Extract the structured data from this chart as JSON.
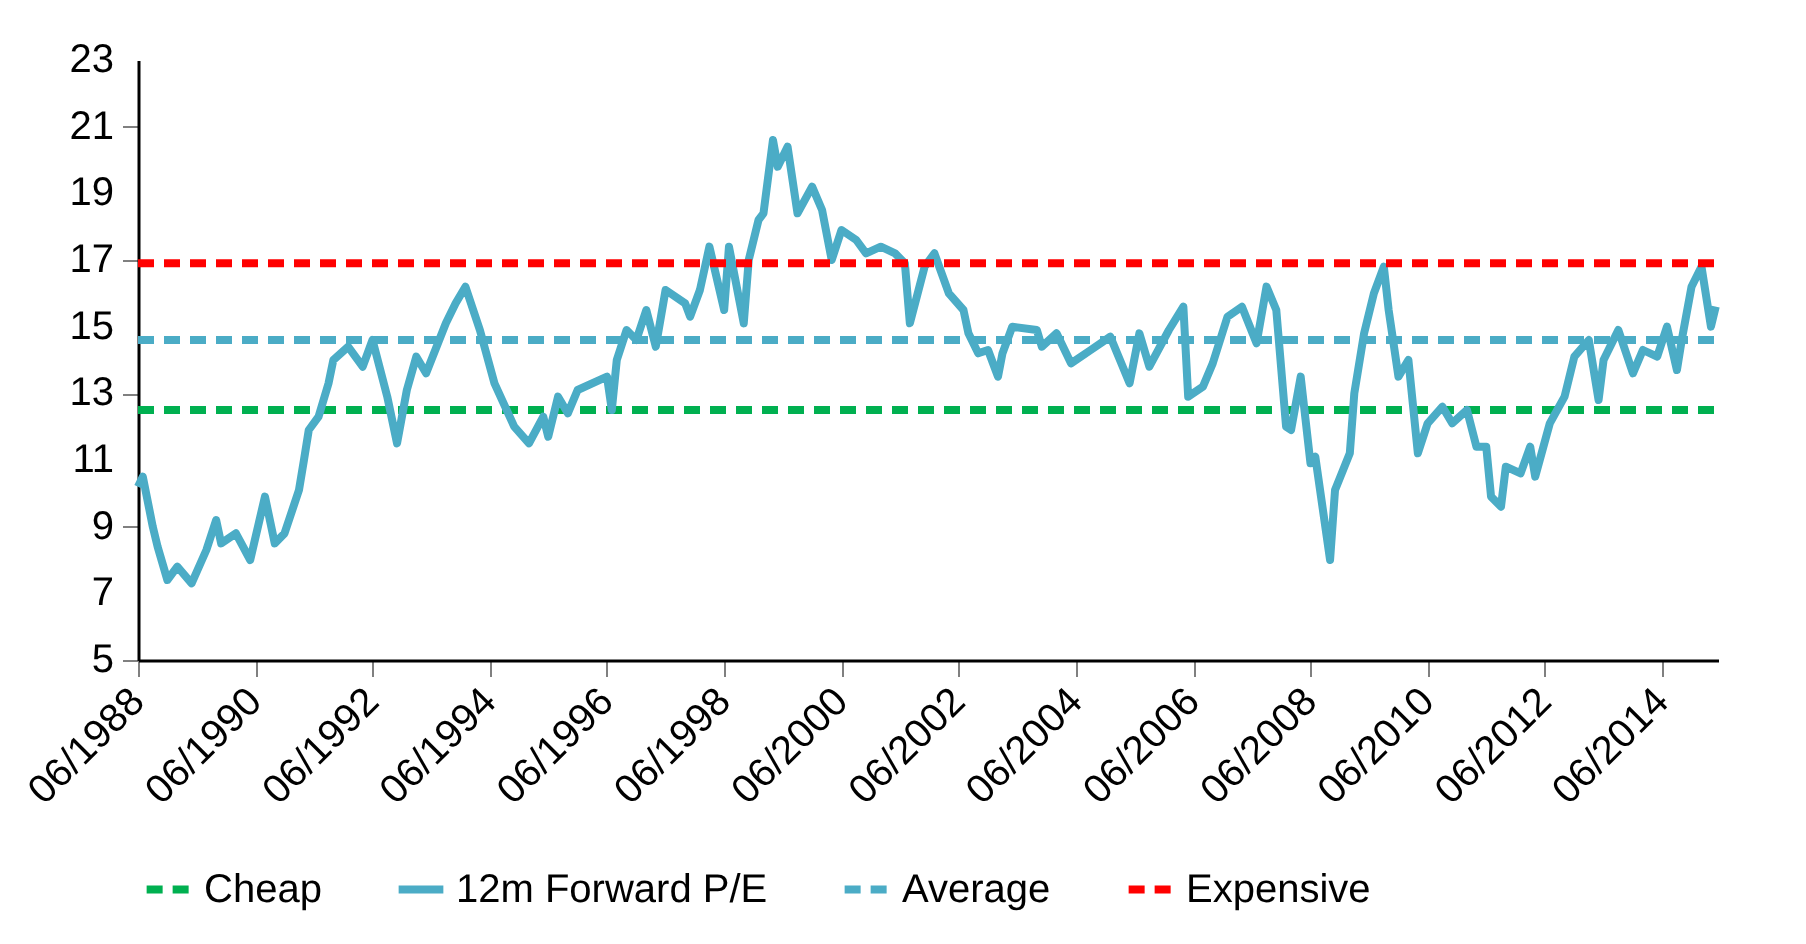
{
  "chart_data": {
    "type": "line",
    "xlim": [
      "1988-06",
      "2015-05-15"
    ],
    "xticks": [
      {
        "value": "1988-06",
        "label": "06/1988"
      },
      {
        "value": "1990-06",
        "label": "06/1990"
      },
      {
        "value": "1992-06",
        "label": "06/1992"
      },
      {
        "value": "1994-06",
        "label": "06/1994"
      },
      {
        "value": "1996-06",
        "label": "06/1996"
      },
      {
        "value": "1998-06",
        "label": "06/1998"
      },
      {
        "value": "2000-06",
        "label": "06/2000"
      },
      {
        "value": "2002-06",
        "label": "06/2002"
      },
      {
        "value": "2004-06",
        "label": "06/2004"
      },
      {
        "value": "2006-06",
        "label": "06/2006"
      },
      {
        "value": "2008-06",
        "label": "06/2008"
      },
      {
        "value": "2010-06",
        "label": "06/2010"
      },
      {
        "value": "2012-06",
        "label": "06/2012"
      },
      {
        "value": "2014-06",
        "label": "06/2014"
      }
    ],
    "ylim": [
      5,
      23
    ],
    "yticks": [
      5,
      7,
      9,
      11,
      13,
      15,
      17,
      19,
      21,
      23
    ],
    "grid": false,
    "legend": "bottom",
    "series": [
      {
        "name": "Cheap",
        "color": "#00b050",
        "line_style": "dashed",
        "x": [
          "1988-06",
          "2015-05-15"
        ],
        "values": [
          12.5,
          12.5
        ]
      },
      {
        "name": "12m Forward P/E",
        "color": "#4bacc6",
        "line_style": "solid",
        "x": [
          "1988-06",
          "1988-07",
          "1988-09",
          "1988-10",
          "1988-12",
          "1989-02",
          "1989-05",
          "1989-08",
          "1989-10",
          "1989-11",
          "1990-02",
          "1990-05",
          "1990-08",
          "1990-10",
          "1990-12",
          "1991-03",
          "1991-04",
          "1991-05",
          "1991-07",
          "1991-09",
          "1991-10",
          "1992-01",
          "1992-04",
          "1992-06",
          "1992-09",
          "1992-11",
          "1993-01",
          "1993-03",
          "1993-05",
          "1993-09",
          "1993-11",
          "1994-01",
          "1994-04",
          "1994-07",
          "1994-11",
          "1995-02",
          "1995-05",
          "1995-06",
          "1995-08",
          "1995-10",
          "1995-12",
          "1996-06",
          "1996-07",
          "1996-08",
          "1996-10",
          "1996-12",
          "1997-02",
          "1997-04",
          "1997-06",
          "1997-10",
          "1997-11",
          "1998-01",
          "1998-03",
          "1998-06",
          "1998-07",
          "1998-10",
          "1998-11",
          "1999-01",
          "1999-02",
          "1999-04",
          "1999-05",
          "1999-07",
          "1999-09",
          "1999-12",
          "2000-02",
          "2000-04",
          "2000-06",
          "2000-09",
          "2000-11",
          "2001-02",
          "2001-05",
          "2001-07",
          "2001-08",
          "2001-11",
          "2002-01",
          "2002-04",
          "2002-07",
          "2002-08",
          "2002-10",
          "2002-12",
          "2003-02",
          "2003-03",
          "2003-05",
          "2003-10",
          "2003-11",
          "2004-02",
          "2004-05",
          "2004-09",
          "2005-01",
          "2005-05",
          "2005-07",
          "2005-09",
          "2006-01",
          "2006-04",
          "2006-05",
          "2006-08",
          "2006-10",
          "2007-01",
          "2007-04",
          "2007-07",
          "2007-09",
          "2007-11",
          "2008-01",
          "2008-02",
          "2008-04",
          "2008-06",
          "2008-07",
          "2008-10",
          "2008-11",
          "2009-02",
          "2009-03",
          "2009-05",
          "2009-07",
          "2009-09",
          "2009-10",
          "2009-12",
          "2010-02",
          "2010-04",
          "2010-06",
          "2010-09",
          "2010-11",
          "2011-02",
          "2011-04",
          "2011-06",
          "2011-07",
          "2011-09",
          "2011-10",
          "2012-01",
          "2012-03",
          "2012-04",
          "2012-07",
          "2012-10",
          "2012-12",
          "2013-03",
          "2013-05",
          "2013-06",
          "2013-09",
          "2013-12",
          "2014-02",
          "2014-05",
          "2014-07",
          "2014-09",
          "2014-10",
          "2014-12",
          "2015-02",
          "2015-04",
          "2015-05"
        ],
        "values": [
          10.2,
          10.5,
          9.0,
          8.4,
          7.4,
          7.8,
          7.3,
          8.3,
          9.2,
          8.5,
          8.8,
          8.0,
          9.9,
          8.5,
          8.8,
          10.1,
          11.0,
          11.9,
          12.3,
          13.3,
          14.0,
          14.4,
          13.8,
          14.6,
          12.9,
          11.5,
          13.1,
          14.1,
          13.6,
          15.1,
          15.7,
          16.2,
          14.9,
          13.3,
          12.0,
          11.5,
          12.3,
          11.7,
          12.9,
          12.4,
          13.1,
          13.5,
          12.5,
          14.0,
          14.9,
          14.6,
          15.5,
          14.4,
          16.1,
          15.7,
          15.3,
          16.1,
          17.4,
          15.5,
          17.4,
          15.1,
          17.0,
          18.2,
          18.4,
          20.6,
          19.8,
          20.4,
          18.4,
          19.2,
          18.5,
          17.0,
          17.9,
          17.6,
          17.2,
          17.4,
          17.2,
          16.9,
          15.1,
          16.8,
          17.2,
          16.0,
          15.5,
          14.8,
          14.2,
          14.3,
          13.5,
          14.2,
          15.0,
          14.9,
          14.4,
          14.8,
          13.9,
          14.3,
          14.7,
          13.3,
          14.8,
          13.8,
          14.9,
          15.6,
          12.9,
          13.2,
          13.9,
          15.3,
          15.6,
          14.5,
          16.2,
          15.5,
          12.0,
          11.9,
          13.5,
          10.9,
          11.1,
          8.0,
          10.1,
          11.2,
          13.0,
          14.8,
          16.0,
          16.8,
          15.5,
          13.5,
          14.0,
          11.2,
          12.1,
          12.6,
          12.1,
          12.5,
          11.4,
          11.4,
          9.9,
          9.6,
          10.8,
          10.6,
          11.4,
          10.5,
          12.1,
          12.9,
          14.1,
          14.6,
          12.8,
          14.0,
          14.9,
          13.6,
          14.3,
          14.1,
          15.0,
          13.7,
          14.6,
          16.2,
          16.8,
          15.0,
          15.6
        ]
      },
      {
        "name": "Average",
        "color": "#4bacc6",
        "line_style": "dashed",
        "x": [
          "1988-06",
          "2015-05-15"
        ],
        "values": [
          14.6,
          14.6
        ]
      },
      {
        "name": "Expensive",
        "color": "#ff0000",
        "line_style": "dashed",
        "x": [
          "1988-06",
          "2015-05-15"
        ],
        "values": [
          16.9,
          16.9
        ]
      }
    ]
  }
}
